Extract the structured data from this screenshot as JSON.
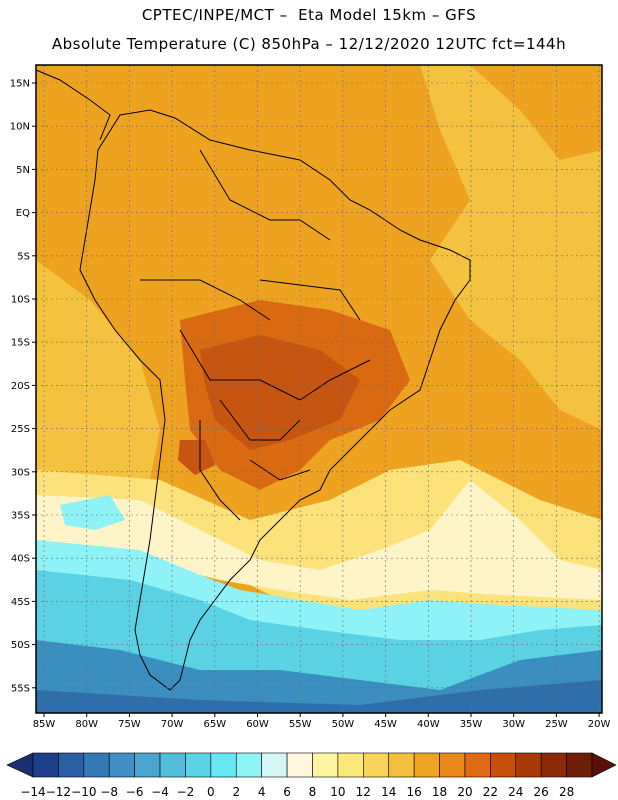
{
  "header": {
    "title_line1": "CPTEC/INPE/MCT –  Eta Model 15km – GFS",
    "title_line2": "Absolute Temperature (C) 850hPa – 12/12/2020 12UTC fct=144h"
  },
  "map": {
    "lat_labels": [
      "15N",
      "10N",
      "5N",
      "EQ",
      "5S",
      "10S",
      "15S",
      "20S",
      "25S",
      "30S",
      "35S",
      "40S",
      "45S",
      "50S",
      "55S"
    ],
    "lon_labels": [
      "85W",
      "80W",
      "75W",
      "70W",
      "65W",
      "60W",
      "55W",
      "50W",
      "45W",
      "40W",
      "35W",
      "30W",
      "25W",
      "20W"
    ]
  },
  "colorbar": {
    "labels": [
      "-14",
      "-12",
      "-10",
      "-8",
      "-6",
      "-4",
      "-2",
      "0",
      "2",
      "4",
      "6",
      "8",
      "10",
      "12",
      "14",
      "16",
      "18",
      "20",
      "22",
      "24",
      "26",
      "28"
    ],
    "colors": [
      "#1e3f8a",
      "#2a5fa6",
      "#3478b5",
      "#3f8fc4",
      "#4aa6cf",
      "#52bedb",
      "#59d3e6",
      "#66e8f2",
      "#8ef4f8",
      "#d4f6f6",
      "#fff8dc",
      "#fff5a0",
      "#fde87a",
      "#f9d45a",
      "#f3bf3c",
      "#eda51f",
      "#e8891a",
      "#e06a12",
      "#c94e0b",
      "#a83a08",
      "#8a2a06",
      "#6e1f05"
    ],
    "under_color": "#1a2f6e",
    "over_color": "#5a1008"
  },
  "colors": {
    "tropics": "#eea320",
    "hot_core": "#d96a12",
    "hottest": "#c55510",
    "subtropics": "#f4c23e",
    "warm_yellow": "#fbe27a",
    "pale": "#fff4c8",
    "cold_light": "#8ef2f6",
    "cold_mid": "#5ad2e4",
    "cold_deep": "#3a8fc0",
    "cold_deeper": "#2e6fab"
  }
}
